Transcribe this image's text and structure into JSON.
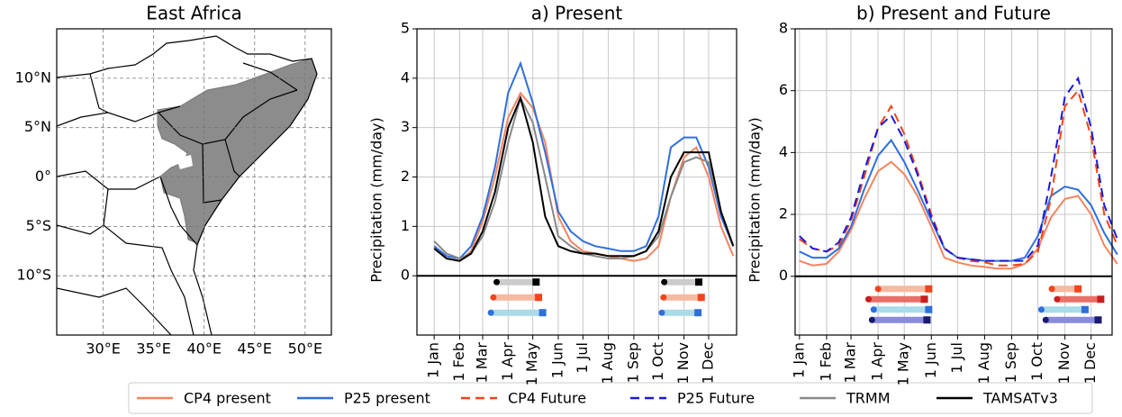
{
  "chart_data": [
    {
      "type": "map",
      "title": "East Africa",
      "xlim": [
        25.4,
        52.6
      ],
      "ylim": [
        -16,
        15
      ],
      "xticks": [
        {
          "value": 30,
          "label": "30°E"
        },
        {
          "value": 35,
          "label": "35°E"
        },
        {
          "value": 40,
          "label": "40°E"
        },
        {
          "value": 45,
          "label": "45°E"
        },
        {
          "value": 50,
          "label": "50°E"
        }
      ],
      "yticks": [
        {
          "value": -10,
          "label": "10°S"
        },
        {
          "value": -5,
          "label": "5°S"
        },
        {
          "value": 0,
          "label": "0°"
        },
        {
          "value": 5,
          "label": "5°N"
        },
        {
          "value": 10,
          "label": "10°N"
        }
      ],
      "grid": true
    },
    {
      "type": "line",
      "title": "a) Present",
      "ylabel": "Precipitation (mm/day)",
      "xlim": [
        -20,
        369
      ],
      "ylim": [
        -1.2,
        5
      ],
      "yticks": [
        0,
        1,
        2,
        3,
        4,
        5
      ],
      "xticks": [
        {
          "value": 1,
          "label": "1 Jan"
        },
        {
          "value": 32,
          "label": "1 Feb"
        },
        {
          "value": 60,
          "label": "1 Mar"
        },
        {
          "value": 91,
          "label": "1 Apr"
        },
        {
          "value": 121,
          "label": "1 May"
        },
        {
          "value": 152,
          "label": "1 Jun"
        },
        {
          "value": 182,
          "label": "1 Jul"
        },
        {
          "value": 213,
          "label": "1 Aug"
        },
        {
          "value": 244,
          "label": "1 Sep"
        },
        {
          "value": 274,
          "label": "1 Oct"
        },
        {
          "value": 305,
          "label": "1 Nov"
        },
        {
          "value": 335,
          "label": "1 Dec"
        }
      ],
      "grid": true,
      "x": [
        1,
        16,
        32,
        46,
        60,
        75,
        91,
        106,
        121,
        136,
        152,
        167,
        182,
        197,
        213,
        228,
        244,
        259,
        274,
        289,
        305,
        320,
        335,
        350,
        365
      ],
      "series": [
        {
          "name": "CP4 present",
          "color": "#f4845f",
          "dashed": false,
          "values": [
            0.6,
            0.35,
            0.3,
            0.5,
            1.1,
            2.0,
            3.2,
            3.7,
            3.4,
            2.7,
            1.2,
            0.7,
            0.5,
            0.45,
            0.4,
            0.35,
            0.3,
            0.35,
            0.6,
            1.6,
            2.4,
            2.6,
            2.0,
            1.0,
            0.4
          ]
        },
        {
          "name": "P25 present",
          "color": "#2f6fdc",
          "dashed": false,
          "values": [
            0.6,
            0.4,
            0.35,
            0.6,
            1.2,
            2.2,
            3.7,
            4.3,
            3.5,
            2.5,
            1.3,
            0.9,
            0.7,
            0.6,
            0.55,
            0.5,
            0.5,
            0.6,
            1.2,
            2.6,
            2.8,
            2.8,
            2.2,
            1.2,
            0.6
          ]
        },
        {
          "name": "TRMM",
          "color": "#888888",
          "dashed": false,
          "values": [
            0.7,
            0.45,
            0.35,
            0.45,
            0.8,
            1.5,
            2.7,
            3.6,
            3.1,
            2.0,
            0.8,
            0.6,
            0.45,
            0.4,
            0.35,
            0.35,
            0.4,
            0.5,
            0.8,
            1.6,
            2.3,
            2.4,
            2.3,
            1.3,
            0.6
          ]
        },
        {
          "name": "TAMSATv3",
          "color": "#000000",
          "dashed": false,
          "values": [
            0.55,
            0.35,
            0.3,
            0.45,
            0.9,
            1.7,
            3.0,
            3.6,
            2.7,
            1.2,
            0.6,
            0.5,
            0.45,
            0.45,
            0.4,
            0.4,
            0.4,
            0.5,
            0.9,
            2.0,
            2.5,
            2.5,
            2.5,
            1.3,
            0.6
          ]
        }
      ],
      "season_bars": [
        {
          "color": "#000000",
          "fill": "#cccccc",
          "periods": [
            [
              77,
              125
            ],
            [
              281,
              323
            ]
          ]
        },
        {
          "color": "#f0441c",
          "fill": "#f7b9a0",
          "periods": [
            [
              73,
              128
            ],
            [
              280,
              326
            ]
          ]
        },
        {
          "color": "#2f6fdc",
          "fill": "#a9dbea",
          "periods": [
            [
              70,
              133
            ],
            [
              278,
              322
            ]
          ]
        }
      ]
    },
    {
      "type": "line",
      "title": "b) Present and Future",
      "ylabel": "Precipitation (mm/day)",
      "xlim": [
        -4,
        359
      ],
      "ylim": [
        -1.9,
        8
      ],
      "yticks": [
        0,
        2,
        4,
        6,
        8
      ],
      "xticks": [
        {
          "value": 1,
          "label": "1 Jan"
        },
        {
          "value": 32,
          "label": "1 Feb"
        },
        {
          "value": 60,
          "label": "1 Mar"
        },
        {
          "value": 91,
          "label": "1 Apr"
        },
        {
          "value": 121,
          "label": "1 May"
        },
        {
          "value": 152,
          "label": "1 Jun"
        },
        {
          "value": 182,
          "label": "1 Jul"
        },
        {
          "value": 213,
          "label": "1 Aug"
        },
        {
          "value": 244,
          "label": "1 Sep"
        },
        {
          "value": 274,
          "label": "1 Oct"
        },
        {
          "value": 305,
          "label": "1 Nov"
        },
        {
          "value": 335,
          "label": "1 Dec"
        }
      ],
      "grid": true,
      "x": [
        1,
        16,
        32,
        46,
        60,
        75,
        91,
        106,
        121,
        136,
        152,
        167,
        182,
        197,
        213,
        228,
        244,
        259,
        274,
        289,
        305,
        320,
        335,
        350,
        365
      ],
      "series": [
        {
          "name": "CP4 present",
          "color": "#f4845f",
          "dashed": false,
          "values": [
            0.5,
            0.35,
            0.4,
            0.8,
            1.5,
            2.5,
            3.4,
            3.7,
            3.3,
            2.6,
            1.6,
            0.6,
            0.45,
            0.35,
            0.3,
            0.25,
            0.25,
            0.4,
            0.9,
            1.9,
            2.5,
            2.6,
            2.0,
            1.0,
            0.4
          ]
        },
        {
          "name": "P25 present",
          "color": "#2f6fdc",
          "dashed": false,
          "values": [
            0.8,
            0.6,
            0.6,
            0.9,
            1.6,
            2.8,
            3.9,
            4.4,
            3.7,
            2.8,
            1.8,
            0.9,
            0.6,
            0.55,
            0.5,
            0.5,
            0.5,
            0.6,
            1.3,
            2.6,
            2.9,
            2.8,
            2.3,
            1.4,
            0.7
          ]
        },
        {
          "name": "CP4 Future",
          "color": "#f0441c",
          "dashed": true,
          "values": [
            1.2,
            0.9,
            0.8,
            1.0,
            1.8,
            3.2,
            4.8,
            5.5,
            4.6,
            3.4,
            2.0,
            0.9,
            0.6,
            0.5,
            0.45,
            0.35,
            0.35,
            0.4,
            0.8,
            2.5,
            5.5,
            6.0,
            4.5,
            2.0,
            1.0
          ]
        },
        {
          "name": "P25 Future",
          "color": "#1a1adb",
          "dashed": true,
          "values": [
            1.3,
            0.9,
            0.8,
            1.1,
            1.9,
            3.4,
            4.8,
            5.2,
            4.4,
            3.3,
            1.9,
            0.9,
            0.6,
            0.55,
            0.5,
            0.5,
            0.5,
            0.5,
            1.0,
            3.2,
            5.8,
            6.4,
            4.8,
            2.3,
            1.2
          ]
        }
      ],
      "season_bars": [
        {
          "color": "#f0441c",
          "fill": "#f7b9a0",
          "periods": [
            [
              91,
              149
            ],
            [
              290,
              320
            ]
          ]
        },
        {
          "color": "#c81e1e",
          "fill": "#e8706a",
          "periods": [
            [
              80,
              144
            ],
            [
              296,
              346
            ]
          ]
        },
        {
          "color": "#2f6fdc",
          "fill": "#a9dbea",
          "periods": [
            [
              86,
              149
            ],
            [
              278,
              328
            ]
          ]
        },
        {
          "color": "#1a1a6e",
          "fill": "#8a8ae0",
          "periods": [
            [
              84,
              147
            ],
            [
              283,
              343
            ]
          ]
        }
      ]
    }
  ]
}
